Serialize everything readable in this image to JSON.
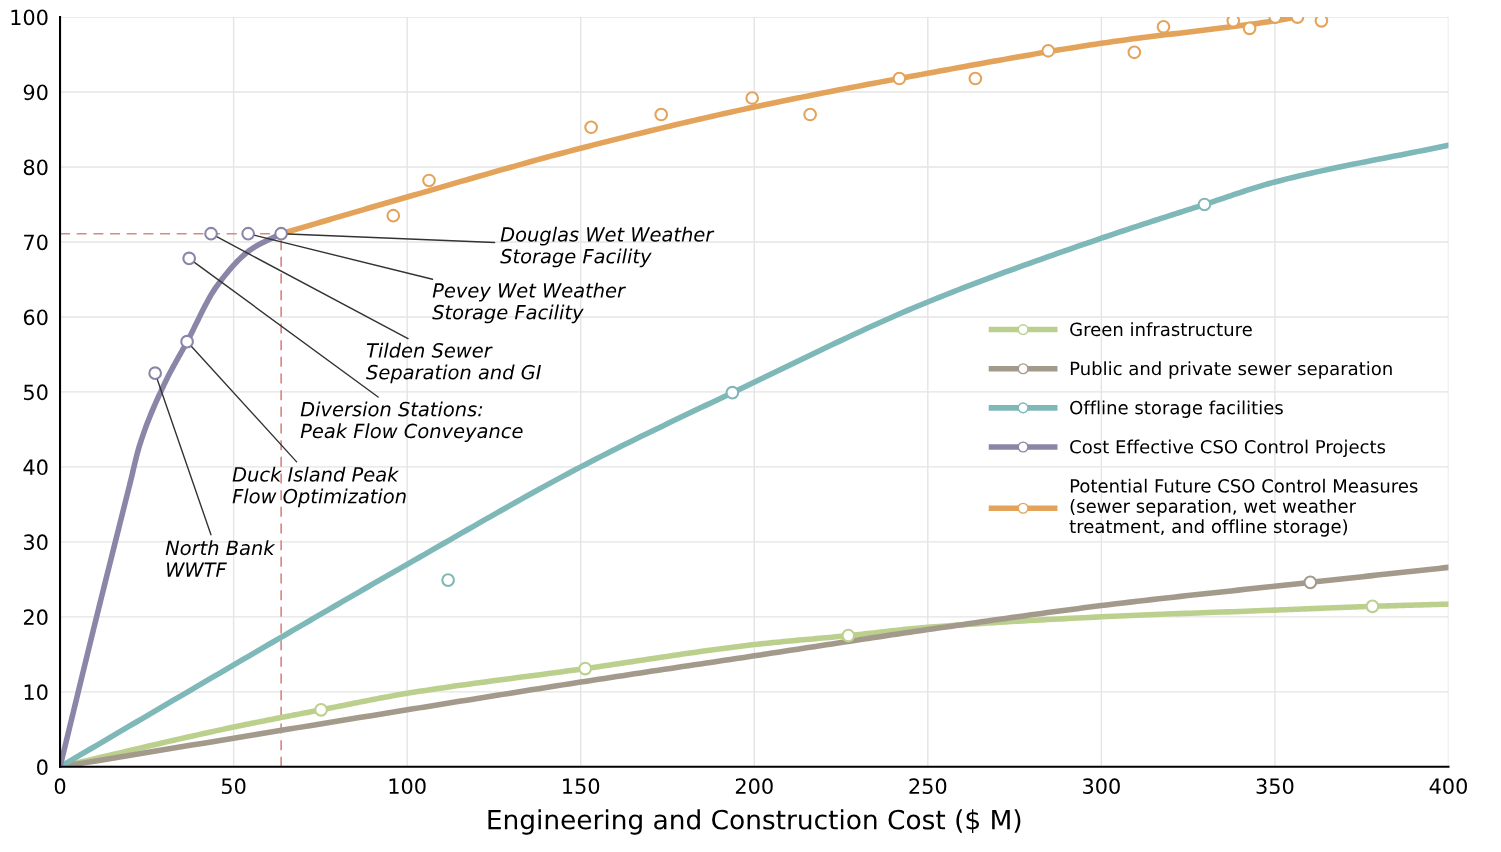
{
  "chart_data": {
    "type": "line",
    "xlabel": "Engineering and Construction Cost ($ M)",
    "xlim": [
      0,
      400
    ],
    "xticks": [
      0,
      50,
      100,
      150,
      200,
      250,
      300,
      350,
      400
    ],
    "ylim": [
      0,
      100
    ],
    "yticks": [
      0,
      10,
      20,
      30,
      40,
      50,
      60,
      70,
      80,
      90,
      100
    ],
    "grid": true,
    "legend": "right",
    "line_style": "solid",
    "series": [
      {
        "name": "Green infrastructure",
        "color": "#bcd08e",
        "x": [
          0,
          50,
          75.2,
          100,
          151.3,
          200,
          227.1,
          250,
          300,
          350,
          378.1,
          400
        ],
        "values": [
          0,
          5.3,
          7.6,
          9.8,
          13.1,
          16.3,
          17.5,
          18.6,
          20,
          20.9,
          21.4,
          21.7
        ]
      },
      {
        "name": "Public and private sewer separation",
        "color": "#a39a8c",
        "x": [
          0,
          100,
          150,
          200,
          250,
          300,
          360.2,
          400
        ],
        "values": [
          0,
          7.6,
          11.3,
          14.8,
          18.3,
          21.5,
          24.6,
          26.6
        ]
      },
      {
        "name": "Offline storage facilities",
        "color": "#7fb8b8",
        "x": [
          0,
          63.4,
          100,
          150,
          193.7,
          250,
          300,
          329.7,
          350,
          400
        ],
        "values": [
          0,
          17.2,
          27,
          40,
          49.9,
          62,
          70.5,
          75,
          78,
          82.9
        ]
      },
      {
        "name": "Cost Effective CSO Control Projects",
        "color": "#8a86a8",
        "x": [
          0,
          10,
          20,
          23,
          30,
          36.6,
          45,
          55,
          63.7
        ],
        "values": [
          0,
          19,
          37.5,
          43,
          51,
          56.7,
          64,
          69,
          71.1
        ]
      },
      {
        "name": "Potential Future CSO Control Measures (sewer separation, wet weather treatment, and offline storage)",
        "color": "#e3a35a",
        "x": [
          63.7,
          100,
          150,
          200,
          250,
          300,
          350,
          356.5
        ],
        "values": [
          71.1,
          76,
          82.5,
          88,
          92.5,
          96.5,
          99.5,
          100
        ]
      },
      {
        "type": "scatter",
        "color": "#bcd08e",
        "marker": "circle",
        "x": [
          75.2,
          151.3,
          227.1,
          378.1
        ],
        "values": [
          7.6,
          13.1,
          17.5,
          21.4
        ]
      },
      {
        "type": "scatter",
        "color": "#a39a8c",
        "marker": "circle",
        "x": [
          360.2
        ],
        "values": [
          24.6
        ]
      },
      {
        "type": "scatter",
        "color": "#7fb8b8",
        "marker": "circle",
        "x": [
          111.8,
          193.7,
          329.7
        ],
        "values": [
          24.9,
          49.9,
          75
        ]
      },
      {
        "type": "scatter",
        "color": "#8a86a8",
        "marker": "circle",
        "x": [
          27.4,
          36.6,
          37.2,
          43.5,
          54.2,
          63.7
        ],
        "values": [
          52.5,
          56.7,
          67.8,
          71.1,
          71.1,
          71.1
        ]
      },
      {
        "type": "scatter",
        "color": "#e3a35a",
        "marker": "circle",
        "x": [
          96,
          106.3,
          153,
          173.2,
          199.4,
          216.1,
          241.8,
          263.7,
          284.7,
          309.5,
          317.9,
          338,
          342.7,
          350.1,
          356.5,
          363.4
        ],
        "values": [
          73.5,
          78.2,
          85.3,
          87,
          89.2,
          87,
          91.8,
          91.8,
          95.5,
          95.3,
          98.7,
          99.5,
          98.5,
          100,
          100,
          99.5
        ]
      }
    ],
    "ref_lines": [
      {
        "axis": "y",
        "value": 71.1,
        "color": "#d88a80",
        "line_style": "dashed"
      },
      {
        "axis": "x",
        "value": 63.7,
        "color": "#d88a80",
        "line_style": "dashed"
      }
    ],
    "annotations": [
      {
        "text": "Douglas Wet Weather\nStorage Facility",
        "x": 63.7,
        "y": 71.1
      },
      {
        "text": "Pevey Wet Weather\nStorage Facility",
        "x": 54.2,
        "y": 71.1
      },
      {
        "text": "Tilden Sewer\nSeparation and GI",
        "x": 43.5,
        "y": 71.1
      },
      {
        "text": "Diversion Stations:\nPeak Flow Conveyance",
        "x": 37.2,
        "y": 67.8
      },
      {
        "text": "Duck Island Peak\nFlow Optimization",
        "x": 36.6,
        "y": 56.7
      },
      {
        "text": "North Bank\nWWTF",
        "x": 27.4,
        "y": 52.5
      }
    ]
  }
}
